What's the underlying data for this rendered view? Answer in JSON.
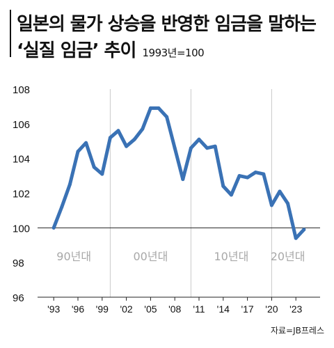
{
  "title": {
    "line1": "일본의 물가 상승을 반영한 임금을 말하는",
    "line2": "‘실질 임금’ 추이",
    "base_note": "1993년=100"
  },
  "source": "자료=JB프레스",
  "chart_data": {
    "type": "line",
    "title": "일본의 물가 상승을 반영한 임금을 말하는 ‘실질 임금’ 추이",
    "subtitle": "1993년=100",
    "xlabel": "",
    "ylabel": "",
    "xlim": [
      1991,
      2026
    ],
    "ylim": [
      96,
      108
    ],
    "yticks": [
      96,
      98,
      100,
      102,
      104,
      106,
      108
    ],
    "xticks": [
      {
        "year": 1993,
        "label": "'93"
      },
      {
        "year": 1996,
        "label": "'96"
      },
      {
        "year": 1999,
        "label": "'99"
      },
      {
        "year": 2002,
        "label": "'02"
      },
      {
        "year": 2005,
        "label": "'05"
      },
      {
        "year": 2008,
        "label": "'08"
      },
      {
        "year": 2011,
        "label": "'11"
      },
      {
        "year": 2014,
        "label": "'14"
      },
      {
        "year": 2017,
        "label": "'17"
      },
      {
        "year": 2020,
        "label": "'20"
      },
      {
        "year": 2023,
        "label": "'23"
      }
    ],
    "decade_dividers": [
      2000,
      2010,
      2020
    ],
    "decade_labels": [
      {
        "label": "90년대",
        "x": 1995.5
      },
      {
        "label": "00년대",
        "x": 2005.0
      },
      {
        "label": "10년대",
        "x": 2015.0
      },
      {
        "label": "20년대",
        "x": 2022.0
      }
    ],
    "reference_line": 100,
    "line_color": "#3a72b5",
    "series": [
      {
        "x": [
          1993,
          1994,
          1995,
          1996,
          1997,
          1998,
          1999,
          2000,
          2001,
          2002,
          2003,
          2004,
          2005,
          2006,
          2007,
          2008,
          2009,
          2010,
          2011,
          2012,
          2013,
          2014,
          2015,
          2016,
          2017,
          2018,
          2019,
          2020,
          2021,
          2022,
          2023,
          2024
        ],
        "values": [
          100.0,
          101.2,
          102.5,
          104.4,
          104.9,
          103.5,
          103.1,
          105.2,
          105.6,
          104.7,
          105.1,
          105.7,
          106.9,
          106.9,
          106.4,
          104.6,
          102.8,
          104.6,
          105.1,
          104.6,
          104.7,
          102.4,
          101.9,
          103.0,
          102.9,
          103.2,
          103.1,
          101.3,
          102.1,
          101.4,
          99.4,
          99.9
        ]
      }
    ]
  }
}
